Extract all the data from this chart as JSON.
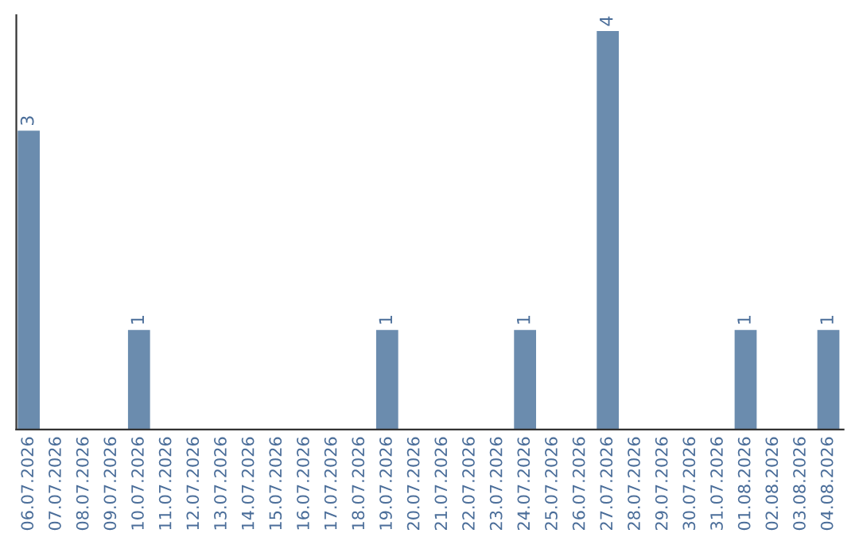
{
  "chart_data": {
    "type": "bar",
    "categories": [
      "06.07.2026",
      "07.07.2026",
      "08.07.2026",
      "09.07.2026",
      "10.07.2026",
      "11.07.2026",
      "12.07.2026",
      "13.07.2026",
      "14.07.2026",
      "15.07.2026",
      "16.07.2026",
      "17.07.2026",
      "18.07.2026",
      "19.07.2026",
      "20.07.2026",
      "21.07.2026",
      "22.07.2026",
      "23.07.2026",
      "24.07.2026",
      "25.07.2026",
      "26.07.2026",
      "27.07.2026",
      "28.07.2026",
      "29.07.2026",
      "30.07.2026",
      "31.07.2026",
      "01.08.2026",
      "02.08.2026",
      "03.08.2026",
      "04.08.2026"
    ],
    "values": [
      3,
      0,
      0,
      0,
      1,
      0,
      0,
      0,
      0,
      0,
      0,
      0,
      0,
      1,
      0,
      0,
      0,
      0,
      1,
      0,
      0,
      4,
      0,
      0,
      0,
      0,
      1,
      0,
      0,
      1
    ],
    "color": "#6b8cae",
    "value_labels": [
      "3",
      null,
      null,
      null,
      "1",
      null,
      null,
      null,
      null,
      null,
      null,
      null,
      null,
      "1",
      null,
      null,
      null,
      null,
      "1",
      null,
      null,
      "4",
      null,
      null,
      null,
      null,
      "1",
      null,
      null,
      "1"
    ],
    "tick_labels": "x",
    "grid": false,
    "legend": false
  }
}
